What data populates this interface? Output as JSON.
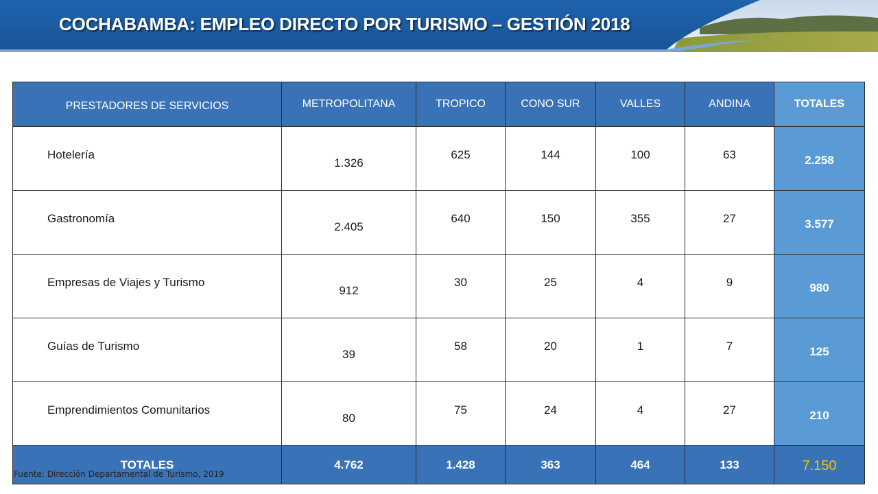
{
  "header": {
    "title": "COCHABAMBA: EMPLEO DIRECTO POR TURISMO – GESTIÓN 2018"
  },
  "table": {
    "columns": [
      "PRESTADORES DE SERVICIOS",
      "METROPOLITANA",
      "TROPICO",
      "CONO SUR",
      "VALLES",
      "ANDINA",
      "TOTALES"
    ],
    "rows": [
      {
        "label": "Hotelería",
        "values": [
          "1.326",
          "625",
          "144",
          "100",
          "63"
        ],
        "total": "2.258"
      },
      {
        "label": "Gastronomía",
        "values": [
          "2.405",
          "640",
          "150",
          "355",
          "27"
        ],
        "total": "3.577"
      },
      {
        "label": "Empresas de Viajes y Turismo",
        "values": [
          "912",
          "30",
          "25",
          "4",
          "9"
        ],
        "total": "980"
      },
      {
        "label": "Guías de Turismo",
        "values": [
          "39",
          "58",
          "20",
          "1",
          "7"
        ],
        "total": "125"
      },
      {
        "label": "Emprendimientos Comunitarios",
        "values": [
          "80",
          "75",
          "24",
          "4",
          "27"
        ],
        "total": "210"
      }
    ],
    "totals_row": {
      "label": "TOTALES",
      "values": [
        "4.762",
        "1.428",
        "363",
        "464",
        "133"
      ],
      "grand_total": "7.150"
    }
  },
  "footer": {
    "source": "Fuente: Dirección Departamental de Turismo, 2019"
  },
  "colors": {
    "header_blue": "#1f5fa6",
    "table_header": "#3a72b8",
    "totals_column": "#5b9bd5",
    "grand_total_text": "#ffc000"
  }
}
